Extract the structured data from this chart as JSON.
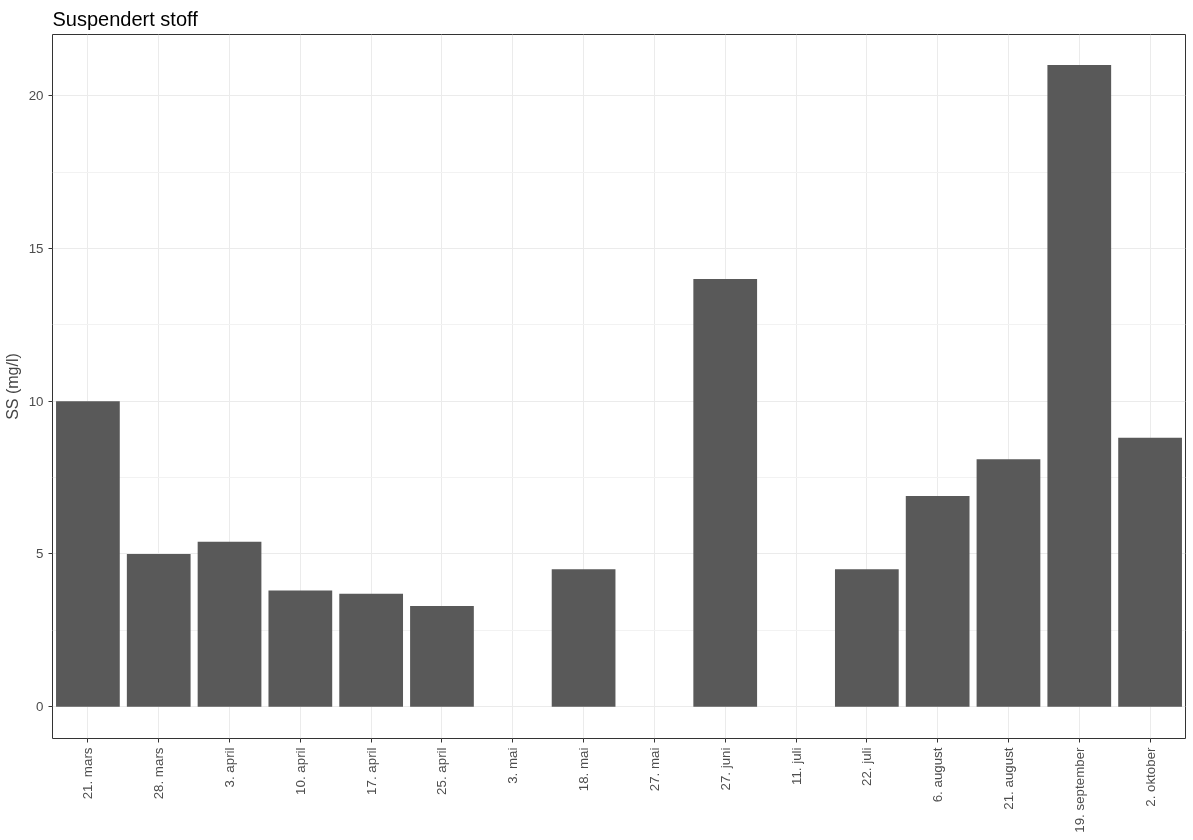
{
  "chart_data": {
    "type": "bar",
    "title": "Suspendert stoff",
    "ylabel": "SS (mg/l)",
    "categories": [
      "21. mars",
      "28. mars",
      "3. april",
      "10. april",
      "17. april",
      "25. april",
      "3. mai",
      "18. mai",
      "27. mai",
      "27. juni",
      "11. juli",
      "22. juli",
      "6. august",
      "21. august",
      "19. september",
      "2. oktober"
    ],
    "values": [
      10,
      5,
      5.4,
      3.8,
      3.7,
      3.3,
      null,
      4.5,
      null,
      14,
      null,
      4.5,
      6.9,
      8.1,
      21,
      8.8
    ],
    "color": "#595959",
    "ylim": [
      -1.04,
      22
    ],
    "yticks": [
      0,
      5,
      10,
      15,
      20
    ],
    "grid": true
  }
}
